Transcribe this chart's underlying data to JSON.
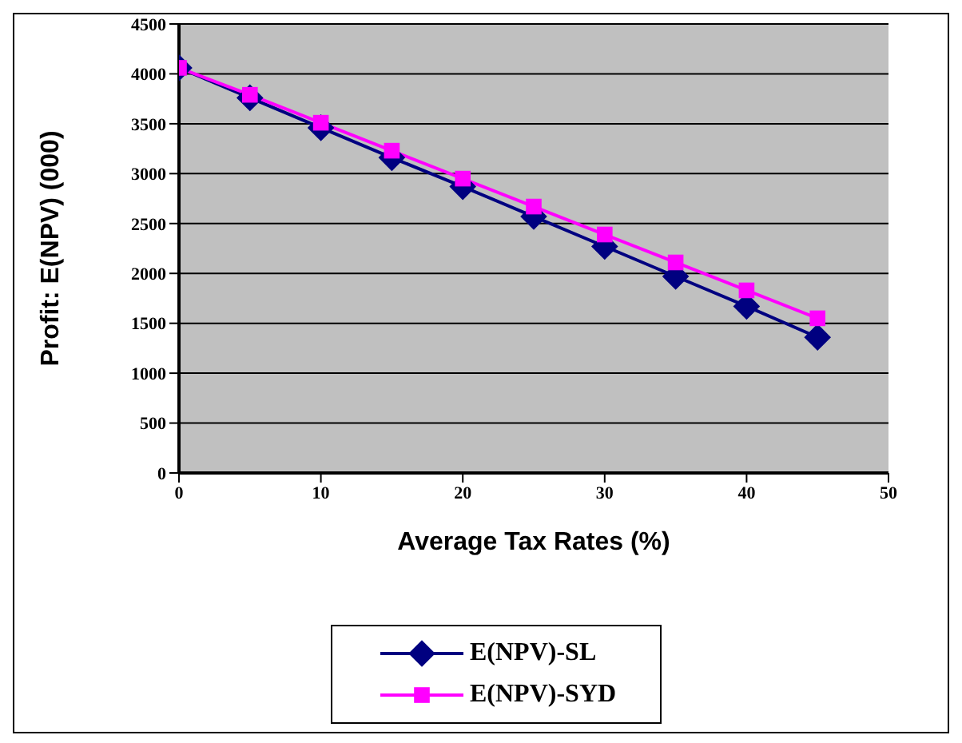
{
  "chart_data": {
    "type": "line",
    "xlabel": "Average Tax Rates (%)",
    "ylabel": "Profit:  E(NPV) (000)",
    "x": [
      0,
      5,
      10,
      15,
      20,
      25,
      30,
      35,
      40,
      45
    ],
    "series": [
      {
        "name": "E(NPV)-SL",
        "color": "#000080",
        "marker": "diamond",
        "values": [
          4060,
          3760,
          3460,
          3160,
          2870,
          2570,
          2270,
          1970,
          1670,
          1360
        ]
      },
      {
        "name": "E(NPV)-SYD",
        "color": "#ff00ff",
        "marker": "square",
        "values": [
          4060,
          3790,
          3510,
          3230,
          2950,
          2670,
          2390,
          2110,
          1830,
          1550
        ]
      }
    ],
    "xlim": [
      0,
      50
    ],
    "xticks": [
      0,
      10,
      20,
      30,
      40,
      50
    ],
    "ylim": [
      0,
      4500
    ],
    "yticks": [
      0,
      500,
      1000,
      1500,
      2000,
      2500,
      3000,
      3500,
      4000,
      4500
    ],
    "grid": "y",
    "legend": "bottom",
    "line_style": "solid"
  }
}
